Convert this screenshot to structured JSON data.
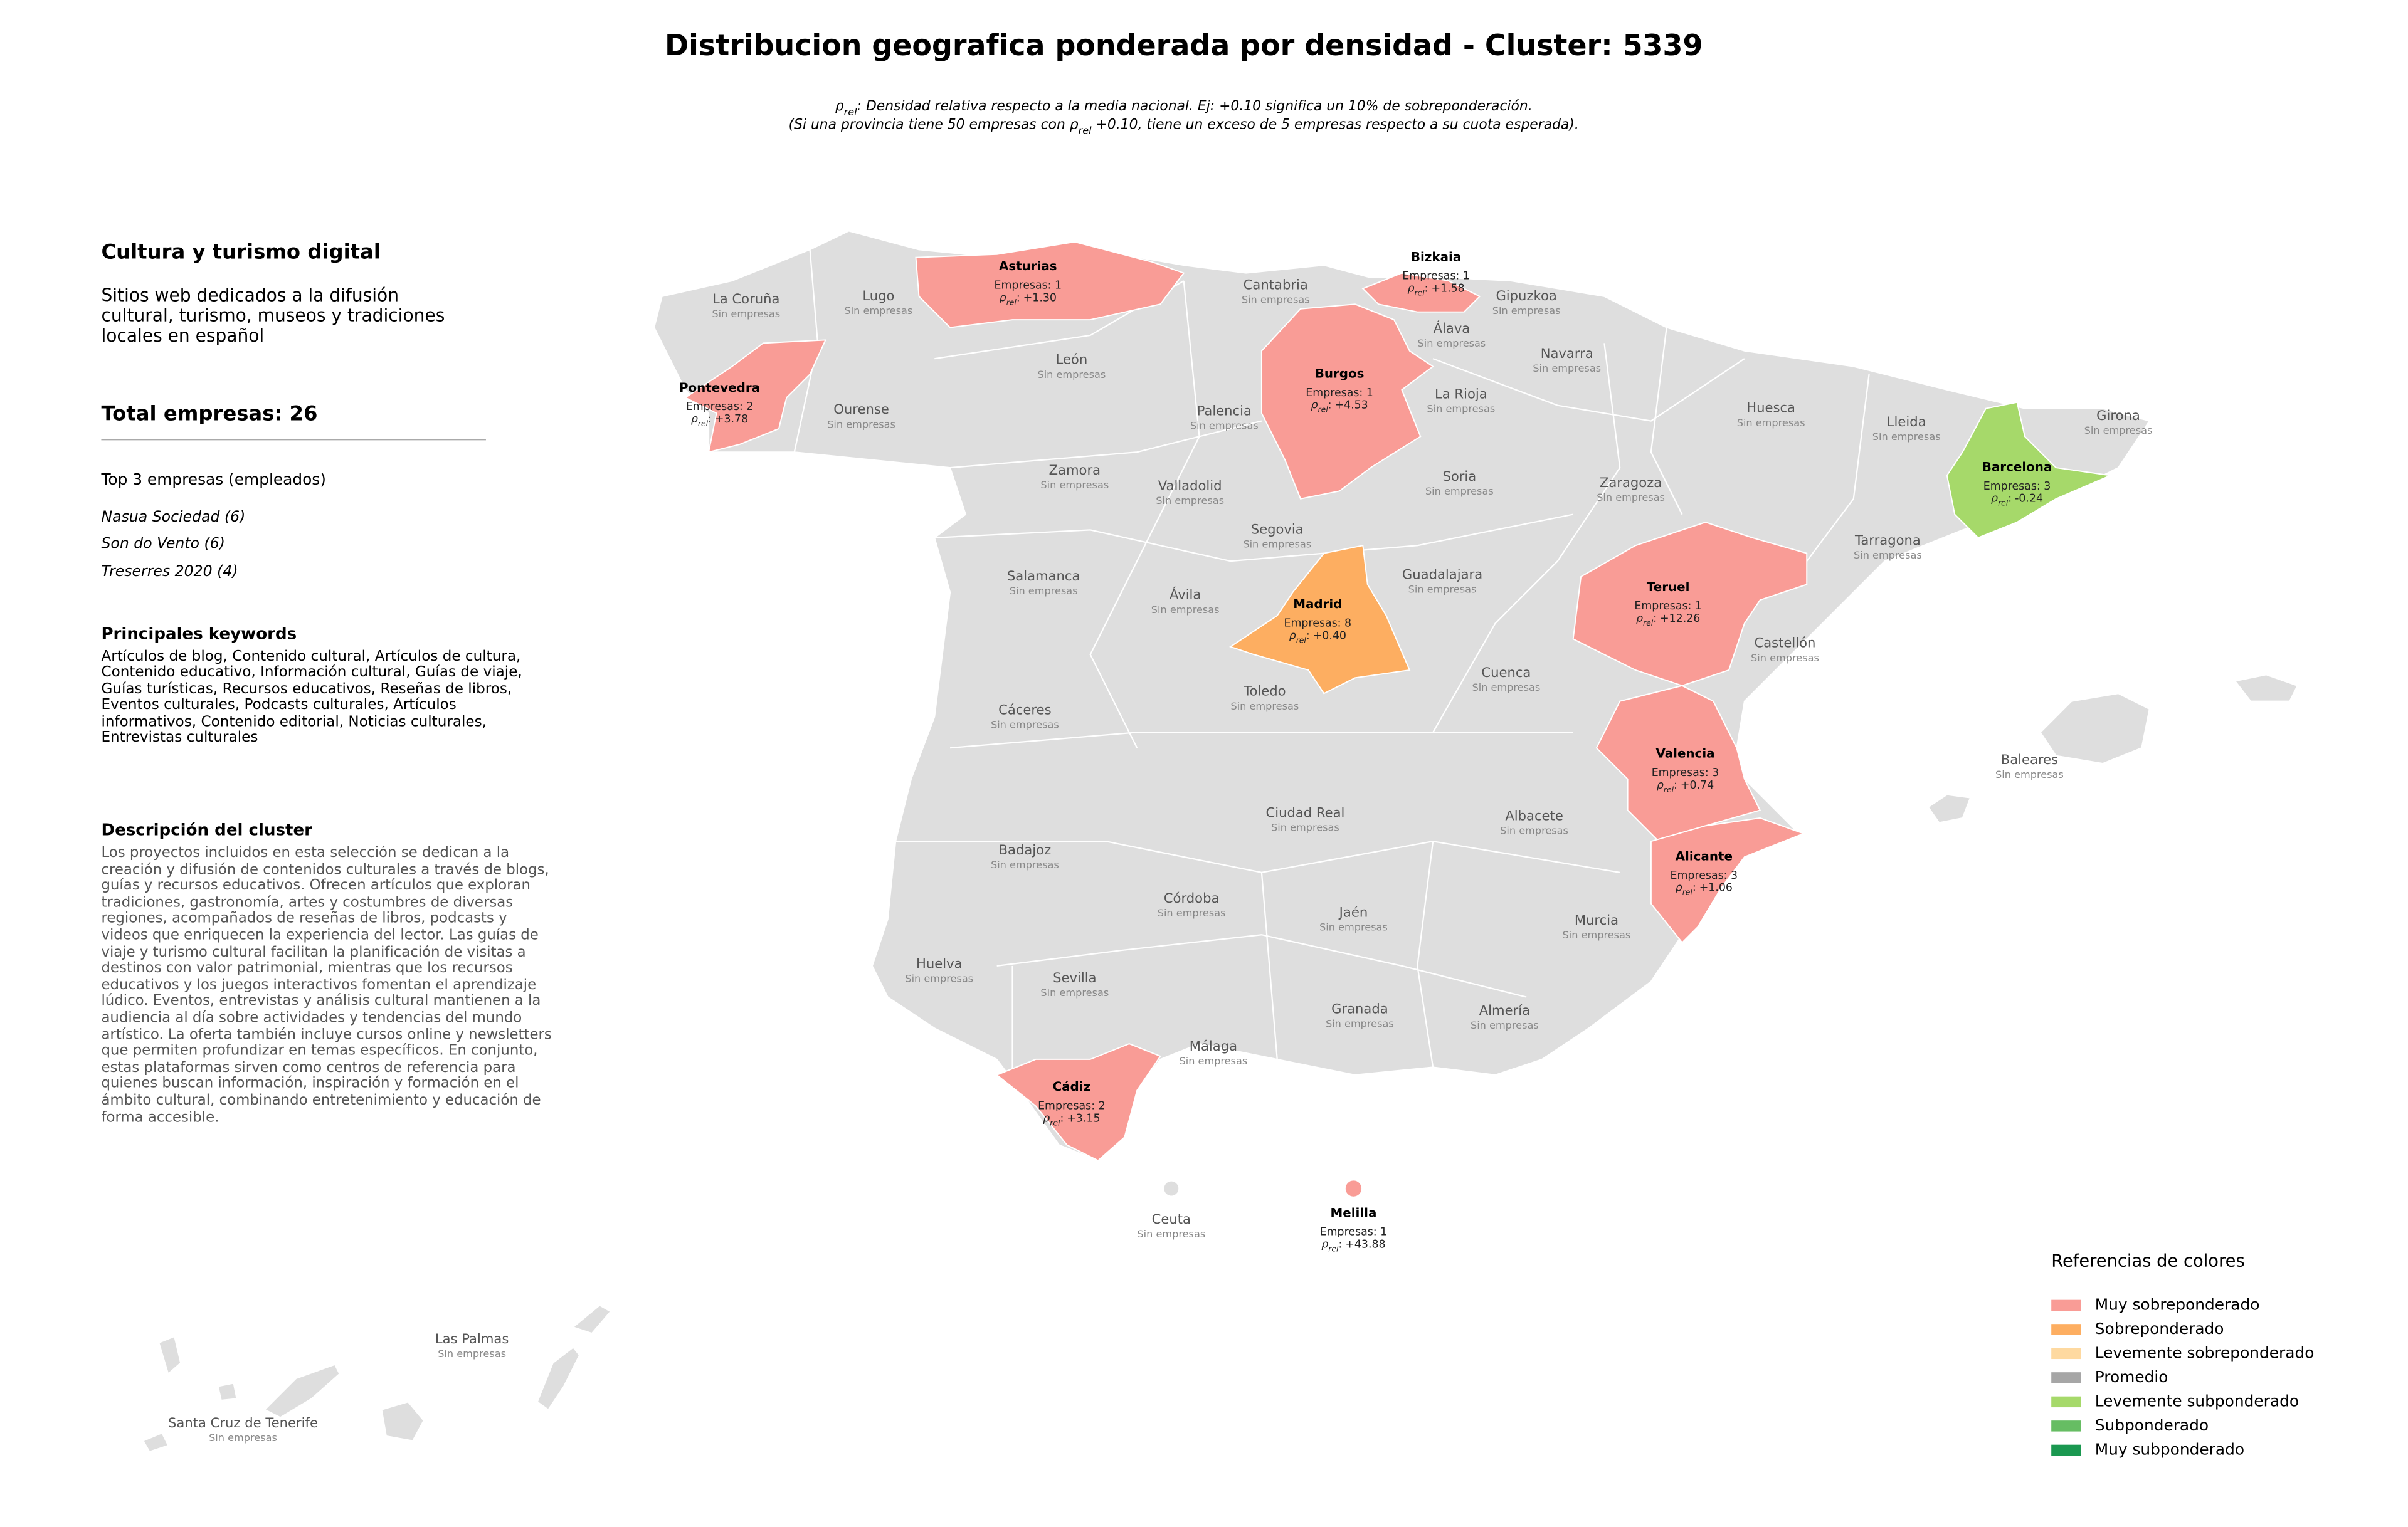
{
  "header": {
    "title": "Distribucion geografica ponderada por densidad - Cluster: 5339",
    "subtitle_lines": [
      [
        {
          "text": "ρ"
        },
        {
          "text": "rel",
          "sub": true
        },
        {
          "text": ": Densidad relativa respecto a la media nacional. Ej: +0.10 significa un 10% de sobreponderación."
        }
      ],
      [
        {
          "text": "(Si una provincia tiene 50 empresas con "
        },
        {
          "text": "ρ"
        },
        {
          "text": "rel",
          "sub": true
        },
        {
          "text": " +0.10, tiene un exceso de 5 empresas respecto a su cuota esperada)."
        }
      ]
    ]
  },
  "panel": {
    "cluster_name": "Cultura y turismo digital",
    "cluster_summary": "Sitios web dedicados a la difusión cultural, turismo, museos y tradiciones locales en español",
    "total": "Total empresas: 26",
    "top_title": "Top 3 empresas (empleados)",
    "top": [
      "Nasua Sociedad (6)",
      "Son do Vento (6)",
      "Treserres 2020 (4)"
    ],
    "keywords_title": "Principales keywords",
    "keywords": "Artículos de blog, Contenido cultural, Artículos de cultura, Contenido educativo, Información cultural, Guías de viaje, Guías turísticas, Recursos educativos, Reseñas de libros, Eventos culturales, Podcasts culturales, Artículos informativos, Contenido editorial, Noticias culturales, Entrevistas culturales",
    "description_title": "Descripción del cluster",
    "description": "Los proyectos incluidos en esta selección se dedican a la creación y difusión de contenidos culturales a través de blogs, guías y recursos educativos. Ofrecen artículos que exploran tradiciones, gastronomía, artes y costumbres de diversas regiones, acompañados de reseñas de libros, podcasts y videos que enriquecen la experiencia del lector. Las guías de viaje y turismo cultural facilitan la planificación de visitas a destinos con valor patrimonial, mientras que los recursos educativos y los juegos interactivos fomentan el aprendizaje lúdico. Eventos, entrevistas y análisis cultural mantienen a la audiencia al día sobre actividades y tendencias del mundo artístico. La oferta también incluye cursos online y newsletters que permiten profundizar en temas específicos. En conjunto, estas plataformas sirven como centros de referencia para quienes buscan información, inspiración y formación en el ámbito cultural, combinando entretenimiento y educación de forma accesible."
  },
  "map": {
    "rho_label": {
      "symbol": "ρ",
      "subscript": "rel",
      "separator": ":"
    },
    "provinces": [
      {
        "name": "La Coruña",
        "status": "Sin empresas"
      },
      {
        "name": "Lugo",
        "status": "Sin empresas"
      },
      {
        "name": "Cantabria",
        "status": "Sin empresas"
      },
      {
        "name": "Gipuzkoa",
        "status": "Sin empresas"
      },
      {
        "name": "Álava",
        "status": "Sin empresas"
      },
      {
        "name": "Navarra",
        "status": "Sin empresas"
      },
      {
        "name": "León",
        "status": "Sin empresas"
      },
      {
        "name": "Ourense",
        "status": "Sin empresas"
      },
      {
        "name": "Palencia",
        "status": "Sin empresas"
      },
      {
        "name": "La Rioja",
        "status": "Sin empresas"
      },
      {
        "name": "Huesca",
        "status": "Sin empresas"
      },
      {
        "name": "Lleida",
        "status": "Sin empresas"
      },
      {
        "name": "Girona",
        "status": "Sin empresas"
      },
      {
        "name": "Zamora",
        "status": "Sin empresas"
      },
      {
        "name": "Valladolid",
        "status": "Sin empresas"
      },
      {
        "name": "Soria",
        "status": "Sin empresas"
      },
      {
        "name": "Zaragoza",
        "status": "Sin empresas"
      },
      {
        "name": "Segovia",
        "status": "Sin empresas"
      },
      {
        "name": "Tarragona",
        "status": "Sin empresas"
      },
      {
        "name": "Salamanca",
        "status": "Sin empresas"
      },
      {
        "name": "Ávila",
        "status": "Sin empresas"
      },
      {
        "name": "Guadalajara",
        "status": "Sin empresas"
      },
      {
        "name": "Castellón",
        "status": "Sin empresas"
      },
      {
        "name": "Cuenca",
        "status": "Sin empresas"
      },
      {
        "name": "Toledo",
        "status": "Sin empresas"
      },
      {
        "name": "Cáceres",
        "status": "Sin empresas"
      },
      {
        "name": "Baleares",
        "status": "Sin empresas"
      },
      {
        "name": "Ciudad Real",
        "status": "Sin empresas"
      },
      {
        "name": "Albacete",
        "status": "Sin empresas"
      },
      {
        "name": "Badajoz",
        "status": "Sin empresas"
      },
      {
        "name": "Córdoba",
        "status": "Sin empresas"
      },
      {
        "name": "Jaén",
        "status": "Sin empresas"
      },
      {
        "name": "Huelva",
        "status": "Sin empresas"
      },
      {
        "name": "Sevilla",
        "status": "Sin empresas"
      },
      {
        "name": "Murcia",
        "status": "Sin empresas"
      },
      {
        "name": "Granada",
        "status": "Sin empresas"
      },
      {
        "name": "Almería",
        "status": "Sin empresas"
      },
      {
        "name": "Málaga",
        "status": "Sin empresas"
      },
      {
        "name": "Ceuta",
        "status": "Sin empresas"
      },
      {
        "name": "Las Palmas",
        "status": "Sin empresas"
      },
      {
        "name": "Santa Cruz de Tenerife",
        "status": "Sin empresas"
      },
      {
        "name": "Asturias",
        "companies": "Empresas: 1",
        "rho": "+1.30",
        "color": "#f99c96"
      },
      {
        "name": "Bizkaia",
        "companies": "Empresas: 1",
        "rho": "+1.58",
        "color": "#f99c96"
      },
      {
        "name": "Pontevedra",
        "companies": "Empresas: 2",
        "rho": "+3.78",
        "color": "#f99c96"
      },
      {
        "name": "Burgos",
        "companies": "Empresas: 1",
        "rho": "+4.53",
        "color": "#f99c96"
      },
      {
        "name": "Barcelona",
        "companies": "Empresas: 3",
        "rho": "-0.24",
        "color": "#a6d96a"
      },
      {
        "name": "Madrid",
        "companies": "Empresas: 8",
        "rho": "+0.40",
        "color": "#fdae61"
      },
      {
        "name": "Teruel",
        "companies": "Empresas: 1",
        "rho": "+12.26",
        "color": "#f99c96"
      },
      {
        "name": "Valencia",
        "companies": "Empresas: 3",
        "rho": "+0.74",
        "color": "#f99c96"
      },
      {
        "name": "Alicante",
        "companies": "Empresas: 3",
        "rho": "+1.06",
        "color": "#f99c96"
      },
      {
        "name": "Cádiz",
        "companies": "Empresas: 2",
        "rho": "+3.15",
        "color": "#f99c96"
      },
      {
        "name": "Melilla",
        "companies": "Empresas: 1",
        "rho": "+43.88",
        "color": "#f99c96"
      }
    ]
  },
  "legend": {
    "title": "Referencias de colores",
    "items": [
      {
        "label": "Muy sobreponderado",
        "color": "#f99c96"
      },
      {
        "label": "Sobreponderado",
        "color": "#fdae61"
      },
      {
        "label": "Levemente sobreponderado",
        "color": "#fed9a0"
      },
      {
        "label": "Promedio",
        "color": "#a6a6a6"
      },
      {
        "label": "Levemente subponderado",
        "color": "#a6d96a"
      },
      {
        "label": "Subponderado",
        "color": "#66bd63"
      },
      {
        "label": "Muy subponderado",
        "color": "#1a9850"
      }
    ]
  }
}
